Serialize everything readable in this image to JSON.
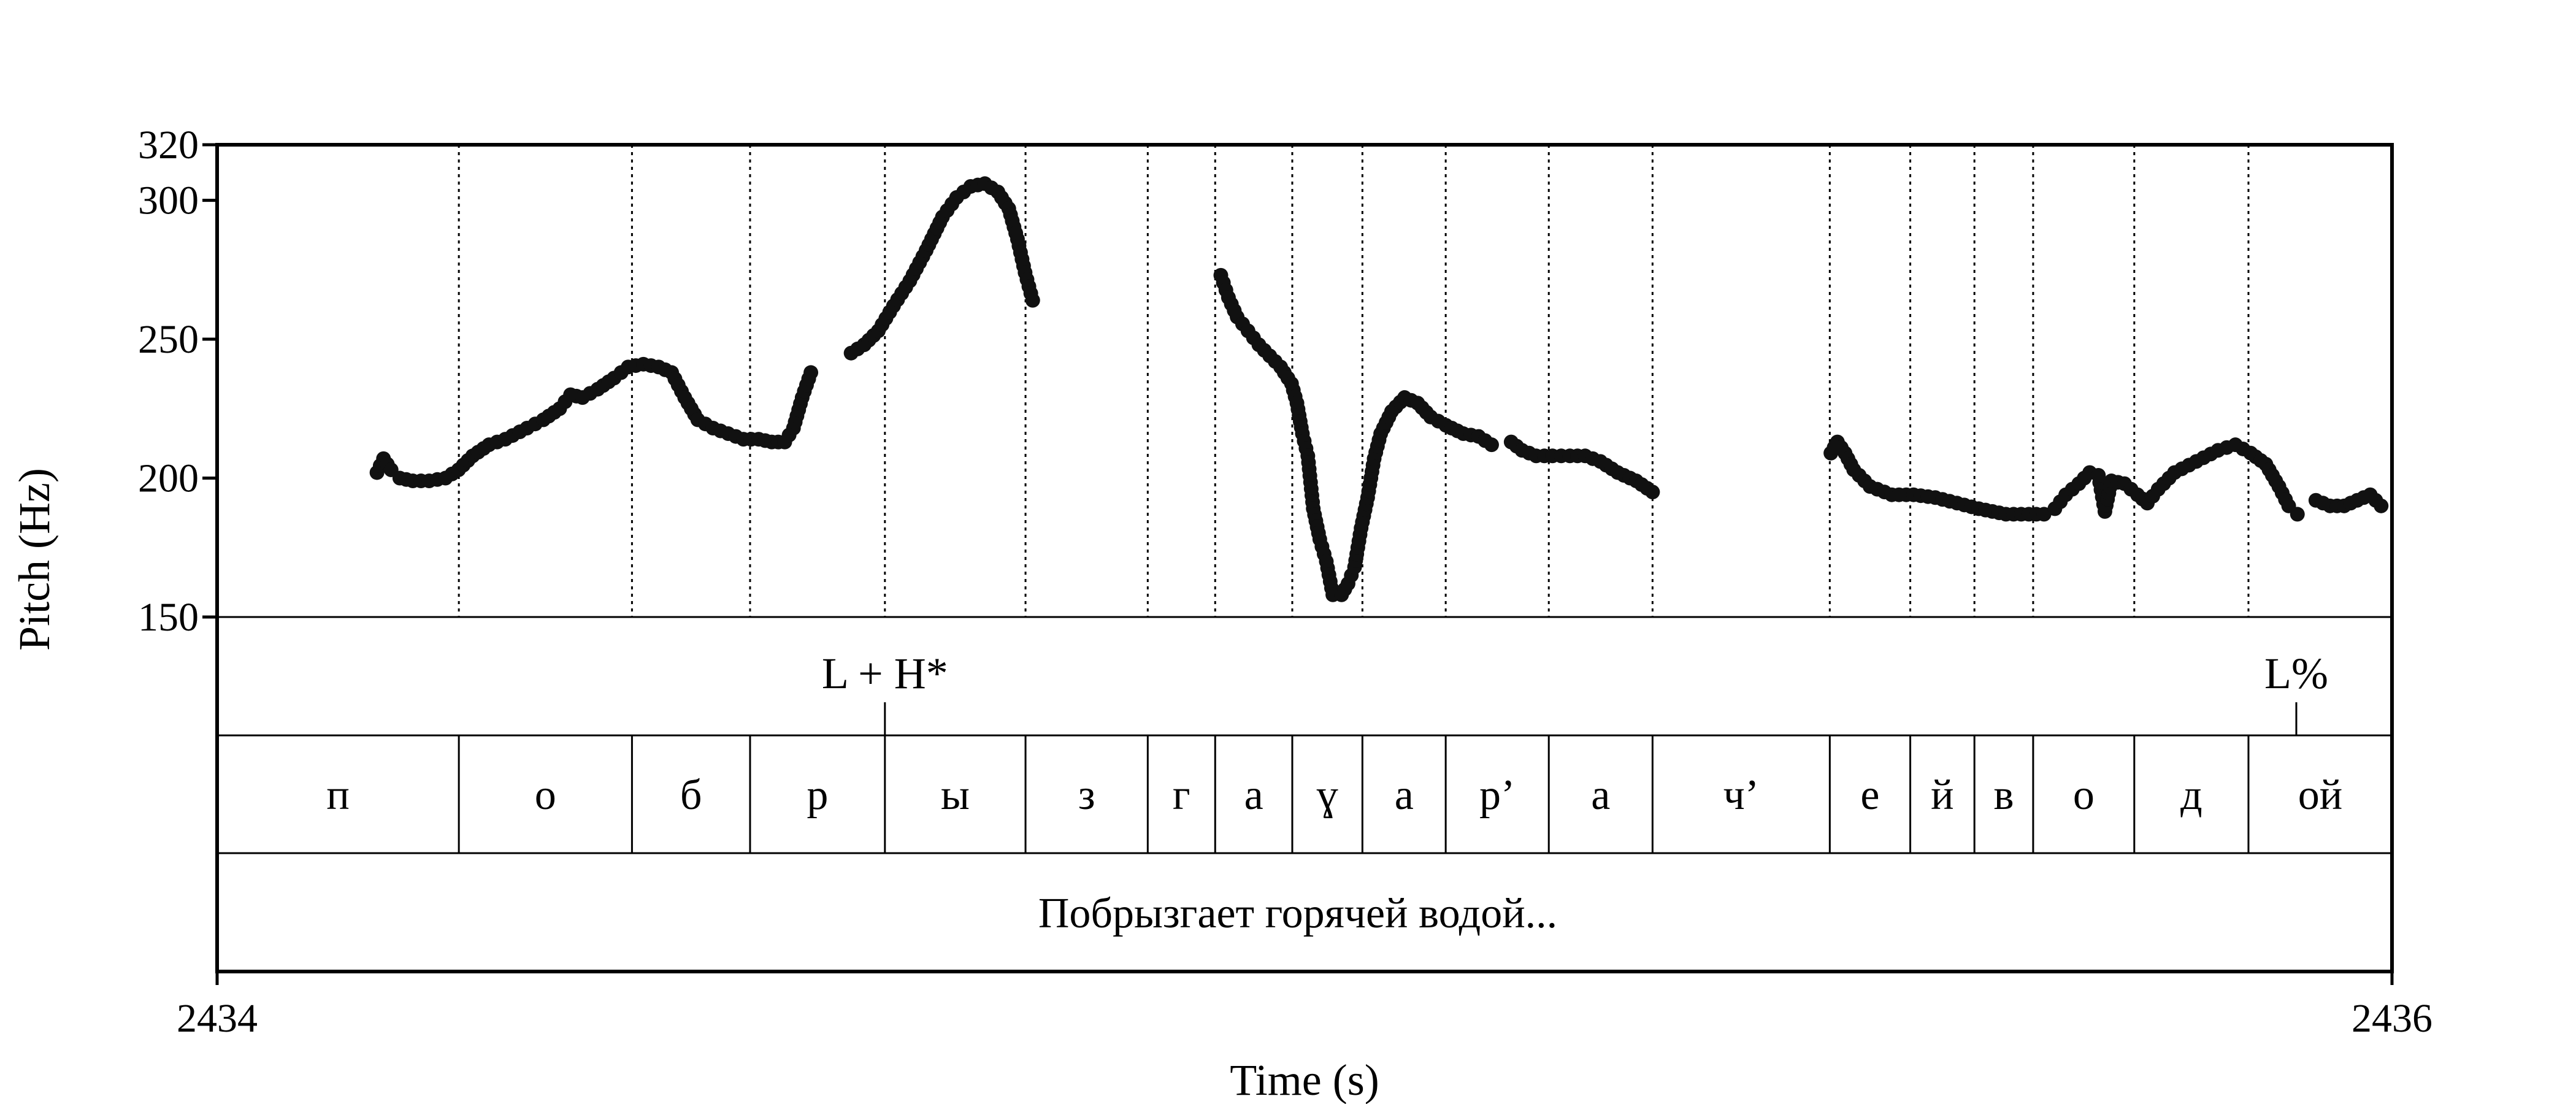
{
  "chart_data": {
    "type": "scatter",
    "title": "",
    "ylabel": "Pitch (Hz)",
    "xlabel": "Time (s)",
    "xlim": [
      2434,
      2436
    ],
    "ylim": [
      150,
      320
    ],
    "x_tick_labels": [
      "2434",
      "2436"
    ],
    "y_ticks": [
      150,
      200,
      250,
      300,
      320
    ],
    "color": "#111111",
    "boundaries": [
      2434.2223,
      2434.3815,
      2434.4901,
      2434.6141,
      2434.7434,
      2434.8558,
      2434.9178,
      2434.9887,
      2435.0532,
      2435.1298,
      2435.2246,
      2435.32,
      2435.483,
      2435.557,
      2435.616,
      2435.67,
      2435.763,
      2435.868
    ],
    "tones": [
      {
        "label": "L + H*",
        "time": 2434.6141
      },
      {
        "label": "L%",
        "time": 2435.912
      }
    ],
    "tiers": {
      "tones_tier": "tones",
      "segments": [
        "п",
        "о",
        "б",
        "р",
        "ы",
        "з",
        "г",
        "а",
        "ɣ",
        "а",
        "р’",
        "а",
        "ч’",
        "е",
        "й",
        "в",
        "о",
        "д",
        "ой"
      ],
      "transcription": "Побрызгает горячей водой..."
    },
    "series": [
      {
        "points": [
          [
            2434.147,
            202
          ],
          [
            2434.153,
            207
          ],
          [
            2434.16,
            203
          ],
          [
            2434.168,
            200
          ],
          [
            2434.18,
            199
          ],
          [
            2434.195,
            199
          ],
          [
            2434.21,
            200
          ],
          [
            2434.222,
            203
          ],
          [
            2434.235,
            208
          ],
          [
            2434.25,
            212
          ],
          [
            2434.265,
            214
          ],
          [
            2434.285,
            218
          ],
          [
            2434.3,
            221
          ],
          [
            2434.315,
            225
          ],
          [
            2434.325,
            230
          ],
          [
            2434.336,
            229
          ],
          [
            2434.35,
            232
          ],
          [
            2434.365,
            236
          ],
          [
            2434.378,
            240
          ],
          [
            2434.392,
            241
          ],
          [
            2434.406,
            240
          ],
          [
            2434.418,
            238
          ],
          [
            2434.43,
            229
          ],
          [
            2434.442,
            221
          ],
          [
            2434.456,
            218
          ],
          [
            2434.47,
            216
          ],
          [
            2434.484,
            214
          ],
          [
            2434.498,
            214
          ],
          [
            2434.51,
            213
          ],
          [
            2434.522,
            213
          ],
          [
            2434.53,
            218
          ],
          [
            2434.538,
            229
          ],
          [
            2434.546,
            238
          ]
        ]
      },
      {
        "points": [
          [
            2434.583,
            245
          ],
          [
            2434.595,
            248
          ],
          [
            2434.608,
            253
          ],
          [
            2434.622,
            262
          ],
          [
            2434.637,
            271
          ],
          [
            2434.652,
            282
          ],
          [
            2434.667,
            294
          ],
          [
            2434.68,
            301
          ],
          [
            2434.693,
            305
          ],
          [
            2434.706,
            306
          ],
          [
            2434.718,
            303
          ],
          [
            2434.728,
            297
          ],
          [
            2434.736,
            286
          ],
          [
            2434.743,
            274
          ],
          [
            2434.75,
            264
          ]
        ]
      },
      {
        "points": [
          [
            2434.923,
            273
          ],
          [
            2434.93,
            265
          ],
          [
            2434.938,
            258
          ],
          [
            2434.948,
            253
          ],
          [
            2434.958,
            248
          ],
          [
            2434.968,
            244
          ],
          [
            2434.978,
            240
          ],
          [
            2434.988,
            234
          ],
          [
            2434.993,
            227
          ],
          [
            2434.998,
            216
          ],
          [
            2435.003,
            208
          ],
          [
            2435.008,
            189
          ],
          [
            2435.014,
            178
          ],
          [
            2435.02,
            170
          ],
          [
            2435.026,
            158
          ],
          [
            2435.034,
            158
          ],
          [
            2435.04,
            162
          ],
          [
            2435.046,
            168
          ],
          [
            2435.052,
            182
          ],
          [
            2435.058,
            193
          ],
          [
            2435.064,
            207
          ],
          [
            2435.07,
            216
          ],
          [
            2435.08,
            224
          ],
          [
            2435.092,
            229
          ],
          [
            2435.104,
            227
          ],
          [
            2435.116,
            222
          ],
          [
            2435.13,
            219
          ],
          [
            2435.146,
            216
          ],
          [
            2435.16,
            215
          ],
          [
            2435.172,
            212
          ]
        ]
      },
      {
        "points": [
          [
            2435.19,
            213
          ],
          [
            2435.2,
            210
          ],
          [
            2435.213,
            208
          ],
          [
            2435.228,
            208
          ],
          [
            2435.244,
            208
          ],
          [
            2435.258,
            208
          ],
          [
            2435.272,
            206
          ],
          [
            2435.288,
            202
          ],
          [
            2435.305,
            199
          ],
          [
            2435.32,
            195
          ]
        ]
      },
      {
        "points": [
          [
            2435.484,
            209
          ],
          [
            2435.49,
            213
          ],
          [
            2435.497,
            209
          ],
          [
            2435.505,
            203
          ],
          [
            2435.52,
            197
          ],
          [
            2435.54,
            194
          ],
          [
            2435.56,
            194
          ],
          [
            2435.58,
            193
          ],
          [
            2435.6,
            191
          ],
          [
            2435.62,
            189
          ],
          [
            2435.645,
            187
          ],
          [
            2435.666,
            187
          ],
          [
            2435.68,
            187
          ],
          [
            2435.69,
            189
          ],
          [
            2435.7,
            194
          ],
          [
            2435.712,
            198
          ],
          [
            2435.722,
            202
          ],
          [
            2435.73,
            201
          ],
          [
            2435.736,
            188
          ],
          [
            2435.742,
            199
          ],
          [
            2435.754,
            198
          ],
          [
            2435.766,
            194
          ],
          [
            2435.775,
            191
          ],
          [
            2435.785,
            196
          ],
          [
            2435.8,
            202
          ],
          [
            2435.82,
            206
          ],
          [
            2435.84,
            210
          ],
          [
            2435.856,
            212
          ],
          [
            2435.87,
            209
          ],
          [
            2435.884,
            205
          ],
          [
            2435.896,
            197
          ],
          [
            2435.905,
            190
          ],
          [
            2435.913,
            187
          ]
        ]
      },
      {
        "points": [
          [
            2435.93,
            192
          ],
          [
            2435.943,
            190
          ],
          [
            2435.956,
            190
          ],
          [
            2435.968,
            192
          ],
          [
            2435.98,
            194
          ],
          [
            2435.99,
            190
          ]
        ]
      }
    ]
  }
}
